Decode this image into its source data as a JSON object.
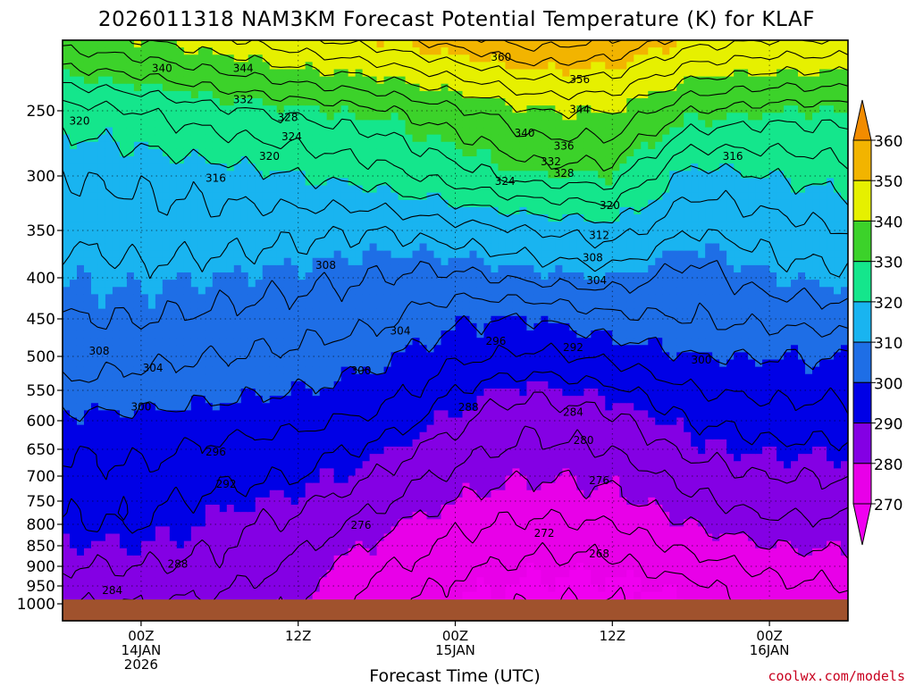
{
  "chart_data": {
    "type": "heatmap",
    "title": "2026011318 NAM3KM Forecast Potential Temperature (K) for KLAF",
    "xlabel": "Forecast Time (UTC)",
    "ylabel": "",
    "credit": "coolwx.com/models",
    "y_ticks": [
      "250",
      "300",
      "350",
      "400",
      "450",
      "500",
      "550",
      "600",
      "650",
      "700",
      "750",
      "800",
      "850",
      "900",
      "950",
      "1000"
    ],
    "y_tick_values": [
      250,
      300,
      350,
      400,
      450,
      500,
      550,
      600,
      650,
      700,
      750,
      800,
      850,
      900,
      950,
      1000
    ],
    "x_ticks": [
      {
        "hour": 6,
        "lines": [
          "00Z",
          "14JAN",
          "2026"
        ]
      },
      {
        "hour": 18,
        "lines": [
          "12Z"
        ]
      },
      {
        "hour": 30,
        "lines": [
          "00Z",
          "15JAN"
        ]
      },
      {
        "hour": 42,
        "lines": [
          "12Z"
        ]
      },
      {
        "hour": 54,
        "lines": [
          "00Z",
          "16JAN"
        ]
      }
    ],
    "x_range_hours": [
      0,
      60
    ],
    "y_range_hpa": [
      200,
      1000
    ],
    "colorbar": {
      "labels": [
        "360",
        "350",
        "340",
        "330",
        "320",
        "310",
        "300",
        "290",
        "280",
        "270"
      ],
      "levels": [
        360,
        350,
        340,
        330,
        320,
        310,
        300,
        290,
        280,
        270
      ],
      "bins": [
        {
          "lo": 270,
          "hi": 280,
          "color": "#e800e8"
        },
        {
          "lo": 280,
          "hi": 290,
          "color": "#8400e4"
        },
        {
          "lo": 290,
          "hi": 300,
          "color": "#0000e6"
        },
        {
          "lo": 300,
          "hi": 310,
          "color": "#1e6ee6"
        },
        {
          "lo": 310,
          "hi": 320,
          "color": "#19b4f0"
        },
        {
          "lo": 320,
          "hi": 330,
          "color": "#14e68c"
        },
        {
          "lo": 330,
          "hi": 340,
          "color": "#3cd22a"
        },
        {
          "lo": 340,
          "hi": 350,
          "color": "#e6f000"
        },
        {
          "lo": 350,
          "hi": 360,
          "color": "#f2b400"
        }
      ],
      "below_color": "#f000f0",
      "above_color": "#f28c00"
    },
    "theta_profiles": {
      "hours": [
        0,
        6,
        12,
        18,
        24,
        27,
        30,
        33,
        36,
        42,
        48,
        54,
        60
      ],
      "levels_hpa": [
        200,
        250,
        300,
        350,
        400,
        450,
        500,
        550,
        600,
        650,
        700,
        750,
        800,
        850,
        900,
        950,
        1000
      ],
      "series": [
        {
          "hour": 0,
          "theta": [
            338,
            322,
            316,
            313,
            310,
            308,
            306,
            303,
            299,
            296,
            295,
            293,
            292,
            290,
            288,
            286,
            284
          ]
        },
        {
          "hour": 6,
          "theta": [
            340,
            324,
            317,
            314,
            311,
            308,
            305,
            302,
            299,
            297,
            295,
            293,
            292,
            290,
            288,
            286,
            284
          ]
        },
        {
          "hour": 12,
          "theta": [
            343,
            327,
            318,
            314,
            310,
            307,
            304,
            301,
            298,
            295,
            293,
            291,
            289,
            288,
            287,
            285,
            283
          ]
        },
        {
          "hour": 18,
          "theta": [
            347,
            329,
            320,
            313,
            309,
            306,
            303,
            300,
            297,
            294,
            292,
            289,
            287,
            285,
            283,
            281,
            280
          ]
        },
        {
          "hour": 24,
          "theta": [
            350,
            331,
            322,
            312,
            308,
            305,
            301,
            298,
            295,
            291,
            288,
            285,
            282,
            279,
            277,
            275,
            273
          ]
        },
        {
          "hour": 27,
          "theta": [
            352,
            333,
            324,
            313,
            307,
            303,
            299,
            296,
            292,
            288,
            285,
            282,
            279,
            277,
            275,
            273,
            272
          ]
        },
        {
          "hour": 30,
          "theta": [
            354,
            335,
            326,
            314,
            307,
            301,
            297,
            292,
            289,
            286,
            283,
            280,
            277,
            275,
            273,
            271,
            270
          ]
        },
        {
          "hour": 33,
          "theta": [
            356,
            337,
            328,
            315,
            308,
            300,
            296,
            290,
            286,
            284,
            281,
            278,
            276,
            274,
            272,
            270,
            269
          ]
        },
        {
          "hour": 36,
          "theta": [
            358,
            340,
            330,
            316,
            309,
            300,
            295,
            289,
            285,
            283,
            280,
            278,
            275,
            273,
            271,
            269,
            268
          ]
        },
        {
          "hour": 42,
          "theta": [
            356,
            340,
            330,
            318,
            310,
            303,
            297,
            291,
            287,
            284,
            281,
            279,
            276,
            273,
            271,
            269,
            268
          ]
        },
        {
          "hour": 48,
          "theta": [
            350,
            332,
            318,
            312,
            306,
            304,
            300,
            296,
            292,
            289,
            286,
            283,
            280,
            277,
            274,
            271,
            270
          ]
        },
        {
          "hour": 54,
          "theta": [
            348,
            330,
            320,
            314,
            310,
            305,
            300,
            297,
            294,
            291,
            288,
            286,
            283,
            280,
            277,
            275,
            273
          ]
        },
        {
          "hour": 60,
          "theta": [
            348,
            330,
            322,
            316,
            311,
            306,
            300,
            297,
            294,
            291,
            288,
            286,
            283,
            281,
            278,
            276,
            274
          ]
        }
      ]
    },
    "contour_labels": [
      {
        "text": "360",
        "hour": 33.5,
        "hpa": 212
      },
      {
        "text": "356",
        "hour": 39.5,
        "hpa": 228
      },
      {
        "text": "340",
        "hour": 7.6,
        "hpa": 220
      },
      {
        "text": "344",
        "hour": 13.8,
        "hpa": 220
      },
      {
        "text": "344",
        "hour": 39.5,
        "hpa": 249
      },
      {
        "text": "332",
        "hour": 13.8,
        "hpa": 242
      },
      {
        "text": "328",
        "hour": 17.2,
        "hpa": 255
      },
      {
        "text": "324",
        "hour": 17.5,
        "hpa": 270
      },
      {
        "text": "320",
        "hour": 15.8,
        "hpa": 285
      },
      {
        "text": "320",
        "hour": 1.3,
        "hpa": 258
      },
      {
        "text": "316",
        "hour": 11.7,
        "hpa": 302
      },
      {
        "text": "316",
        "hour": 51.2,
        "hpa": 285
      },
      {
        "text": "340",
        "hour": 35.3,
        "hpa": 267
      },
      {
        "text": "336",
        "hour": 38.3,
        "hpa": 277
      },
      {
        "text": "332",
        "hour": 37.3,
        "hpa": 289
      },
      {
        "text": "328",
        "hour": 38.3,
        "hpa": 298
      },
      {
        "text": "324",
        "hour": 33.8,
        "hpa": 305
      },
      {
        "text": "320",
        "hour": 41.8,
        "hpa": 327
      },
      {
        "text": "312",
        "hour": 41.0,
        "hpa": 355
      },
      {
        "text": "308",
        "hour": 40.5,
        "hpa": 379
      },
      {
        "text": "304",
        "hour": 40.8,
        "hpa": 403
      },
      {
        "text": "308",
        "hour": 20.1,
        "hpa": 387
      },
      {
        "text": "304",
        "hour": 25.8,
        "hpa": 466
      },
      {
        "text": "308",
        "hour": 2.8,
        "hpa": 493
      },
      {
        "text": "304",
        "hour": 6.9,
        "hpa": 517
      },
      {
        "text": "300",
        "hour": 6.0,
        "hpa": 577
      },
      {
        "text": "300",
        "hour": 22.8,
        "hpa": 521
      },
      {
        "text": "300",
        "hour": 48.8,
        "hpa": 505
      },
      {
        "text": "296",
        "hour": 33.1,
        "hpa": 480
      },
      {
        "text": "292",
        "hour": 39.0,
        "hpa": 488
      },
      {
        "text": "288",
        "hour": 31.0,
        "hpa": 578
      },
      {
        "text": "284",
        "hour": 39.0,
        "hpa": 586
      },
      {
        "text": "280",
        "hour": 39.8,
        "hpa": 634
      },
      {
        "text": "276",
        "hour": 41.0,
        "hpa": 709
      },
      {
        "text": "272",
        "hour": 36.8,
        "hpa": 821
      },
      {
        "text": "268",
        "hour": 41.0,
        "hpa": 870
      },
      {
        "text": "296",
        "hour": 11.7,
        "hpa": 655
      },
      {
        "text": "292",
        "hour": 12.5,
        "hpa": 716
      },
      {
        "text": "288",
        "hour": 8.8,
        "hpa": 895
      },
      {
        "text": "284",
        "hour": 3.8,
        "hpa": 962
      },
      {
        "text": "276",
        "hour": 22.8,
        "hpa": 802
      }
    ],
    "ground_color": "#a0522d"
  }
}
